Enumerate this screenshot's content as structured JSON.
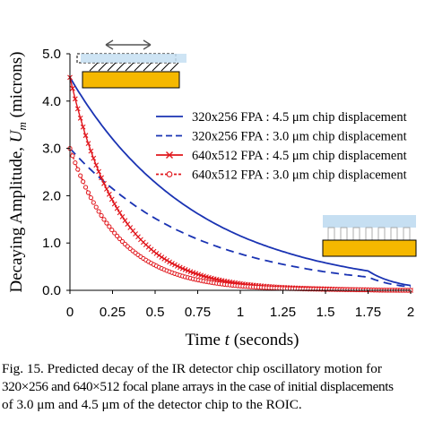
{
  "chart_data": {
    "type": "line",
    "xlabel": "Time t (seconds)",
    "ylabel": "Decaying Amplitude, U_m (microns)",
    "xlim": [
      0,
      2
    ],
    "ylim": [
      0,
      5
    ],
    "x_ticks": [
      "0",
      "0.25",
      "0.5",
      "0.75",
      "1",
      "1.25",
      "1.5",
      "1.75",
      "2"
    ],
    "y_ticks": [
      "0.0",
      "1.0",
      "2.0",
      "3.0",
      "4.0",
      "5.0"
    ],
    "grid": false,
    "legend_position": "right",
    "series": [
      {
        "name": "320x256 FPA : 4.5 μm chip displacement",
        "style": "solid",
        "color": "#1a33b3",
        "x": [
          0,
          0.25,
          0.5,
          0.75,
          1.0,
          1.25,
          1.5,
          1.75,
          2.0
        ],
        "y": [
          4.5,
          3.2,
          2.28,
          1.62,
          1.15,
          0.82,
          0.58,
          0.41,
          0.1
        ]
      },
      {
        "name": "320x256 FPA : 3.0 μm chip displacement",
        "style": "dashed",
        "color": "#1a33b3",
        "x": [
          0,
          0.25,
          0.5,
          0.75,
          1.0,
          1.25,
          1.5,
          1.75,
          2.0
        ],
        "y": [
          3.0,
          2.15,
          1.52,
          1.08,
          0.77,
          0.55,
          0.39,
          0.28,
          0.07
        ]
      },
      {
        "name": "640x512 FPA : 4.5 μm chip displacement",
        "style": "solid-x-markers",
        "color": "#e0161c",
        "x": [
          0,
          0.25,
          0.5,
          0.75,
          1.0,
          1.25,
          1.5,
          1.75,
          2.0
        ],
        "y": [
          4.5,
          1.9,
          0.8,
          0.34,
          0.14,
          0.06,
          0.03,
          0.01,
          0.0
        ]
      },
      {
        "name": "640x512 FPA : 3.0 μm chip displacement",
        "style": "dashed-circle-markers",
        "color": "#e0161c",
        "x": [
          0,
          0.25,
          0.5,
          0.75,
          1.0,
          1.25,
          1.5,
          1.75,
          2.0
        ],
        "y": [
          3.0,
          1.26,
          0.53,
          0.22,
          0.09,
          0.04,
          0.02,
          0.01,
          0.0
        ]
      }
    ]
  },
  "figure": {
    "xlabel_prefix": "Time ",
    "xlabel_var": "t",
    "xlabel_suffix": " (seconds)",
    "ylabel_prefix": "Decaying Amplitude, ",
    "ylabel_var": "U",
    "ylabel_sub": "m",
    "ylabel_suffix": " (microns)"
  },
  "caption": {
    "lines": [
      "Fig. 15.  Predicted decay of the IR detector chip oscillatory motion for",
      "320×256 and 640×512 focal plane arrays in the case of initial displacements",
      "of 3.0 μm and 4.5 μm of the detector chip to the ROIC."
    ]
  },
  "colors": {
    "blue": "#1a33b3",
    "red": "#e0161c",
    "roic": "#f5b800",
    "chip": "#c6dff2"
  }
}
